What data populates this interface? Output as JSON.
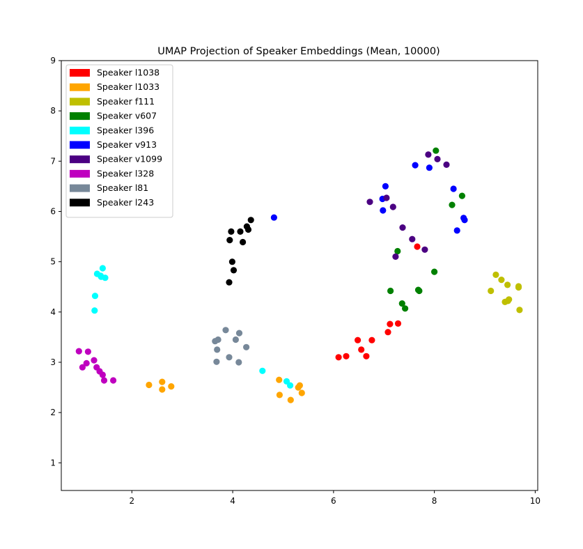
{
  "chart_data": {
    "type": "scatter",
    "title": "UMAP Projection of Speaker Embeddings (Mean, 10000)",
    "xlabel": "",
    "ylabel": "",
    "xlim": [
      0.6,
      10.05
    ],
    "ylim": [
      0.45,
      9.0
    ],
    "xticks": [
      2,
      4,
      6,
      8,
      10
    ],
    "yticks": [
      1,
      2,
      3,
      4,
      5,
      6,
      7,
      8,
      9
    ],
    "grid": false,
    "legend_position": "upper-left",
    "series": [
      {
        "name": "Speaker l1038",
        "color": "#ff0000",
        "points": [
          [
            6.1,
            3.1
          ],
          [
            6.25,
            3.12
          ],
          [
            6.48,
            3.44
          ],
          [
            6.55,
            3.25
          ],
          [
            6.65,
            3.12
          ],
          [
            6.76,
            3.44
          ],
          [
            7.08,
            3.6
          ],
          [
            7.12,
            3.76
          ],
          [
            7.28,
            3.77
          ],
          [
            7.66,
            5.3
          ]
        ]
      },
      {
        "name": "Speaker l1033",
        "color": "#ffa500",
        "points": [
          [
            2.34,
            2.55
          ],
          [
            2.6,
            2.61
          ],
          [
            2.6,
            2.46
          ],
          [
            2.78,
            2.52
          ],
          [
            4.92,
            2.65
          ],
          [
            4.93,
            2.35
          ],
          [
            5.15,
            2.25
          ],
          [
            5.3,
            2.5
          ],
          [
            5.33,
            2.54
          ],
          [
            5.37,
            2.39
          ]
        ]
      },
      {
        "name": "Speaker f111",
        "color": "#bfbf00",
        "points": [
          [
            9.12,
            4.42
          ],
          [
            9.22,
            4.74
          ],
          [
            9.33,
            4.64
          ],
          [
            9.4,
            4.2
          ],
          [
            9.45,
            4.54
          ],
          [
            9.46,
            4.22
          ],
          [
            9.48,
            4.25
          ],
          [
            9.67,
            4.51
          ],
          [
            9.67,
            4.49
          ],
          [
            9.69,
            4.04
          ]
        ]
      },
      {
        "name": "Speaker v607",
        "color": "#008000",
        "points": [
          [
            7.13,
            4.42
          ],
          [
            7.27,
            5.21
          ],
          [
            7.36,
            4.17
          ],
          [
            7.42,
            4.07
          ],
          [
            7.68,
            4.44
          ],
          [
            7.7,
            4.42
          ],
          [
            8.0,
            4.8
          ],
          [
            8.03,
            7.21
          ],
          [
            8.35,
            6.13
          ],
          [
            8.55,
            6.31
          ]
        ]
      },
      {
        "name": "Speaker l396",
        "color": "#00ffff",
        "points": [
          [
            1.26,
            4.03
          ],
          [
            1.27,
            4.32
          ],
          [
            1.31,
            4.76
          ],
          [
            1.39,
            4.7
          ],
          [
            1.42,
            4.87
          ],
          [
            1.47,
            4.68
          ],
          [
            4.59,
            2.83
          ],
          [
            5.07,
            2.62
          ],
          [
            5.14,
            2.54
          ],
          [
            1.38,
            4.72
          ]
        ]
      },
      {
        "name": "Speaker v913",
        "color": "#0000ff",
        "points": [
          [
            4.82,
            5.88
          ],
          [
            6.97,
            6.25
          ],
          [
            6.98,
            6.02
          ],
          [
            7.03,
            6.5
          ],
          [
            7.62,
            6.92
          ],
          [
            7.9,
            6.87
          ],
          [
            8.38,
            6.45
          ],
          [
            8.45,
            5.62
          ],
          [
            8.58,
            5.87
          ],
          [
            8.6,
            5.83
          ]
        ]
      },
      {
        "name": "Speaker v1099",
        "color": "#4b0082",
        "points": [
          [
            6.72,
            6.19
          ],
          [
            7.05,
            6.27
          ],
          [
            7.18,
            6.09
          ],
          [
            7.23,
            5.1
          ],
          [
            7.37,
            5.68
          ],
          [
            7.56,
            5.45
          ],
          [
            7.81,
            5.24
          ],
          [
            7.88,
            7.13
          ],
          [
            8.06,
            7.04
          ],
          [
            8.24,
            6.93
          ]
        ]
      },
      {
        "name": "Speaker l328",
        "color": "#bf00bf",
        "points": [
          [
            0.95,
            3.22
          ],
          [
            1.02,
            2.9
          ],
          [
            1.1,
            2.98
          ],
          [
            1.13,
            3.21
          ],
          [
            1.25,
            3.04
          ],
          [
            1.3,
            2.9
          ],
          [
            1.36,
            2.82
          ],
          [
            1.42,
            2.75
          ],
          [
            1.45,
            2.64
          ],
          [
            1.63,
            2.64
          ]
        ]
      },
      {
        "name": "Speaker l81",
        "color": "#778899",
        "points": [
          [
            3.65,
            3.42
          ],
          [
            3.68,
            3.01
          ],
          [
            3.69,
            3.25
          ],
          [
            3.71,
            3.45
          ],
          [
            3.86,
            3.64
          ],
          [
            3.93,
            3.1
          ],
          [
            4.06,
            3.45
          ],
          [
            4.12,
            3.0
          ],
          [
            4.13,
            3.58
          ],
          [
            4.27,
            3.3
          ]
        ]
      },
      {
        "name": "Speaker l243",
        "color": "#000000",
        "points": [
          [
            3.93,
            4.59
          ],
          [
            3.94,
            5.43
          ],
          [
            3.97,
            5.6
          ],
          [
            3.99,
            5.0
          ],
          [
            4.02,
            4.83
          ],
          [
            4.15,
            5.6
          ],
          [
            4.2,
            5.39
          ],
          [
            4.28,
            5.7
          ],
          [
            4.31,
            5.64
          ],
          [
            4.36,
            5.83
          ]
        ]
      }
    ]
  }
}
